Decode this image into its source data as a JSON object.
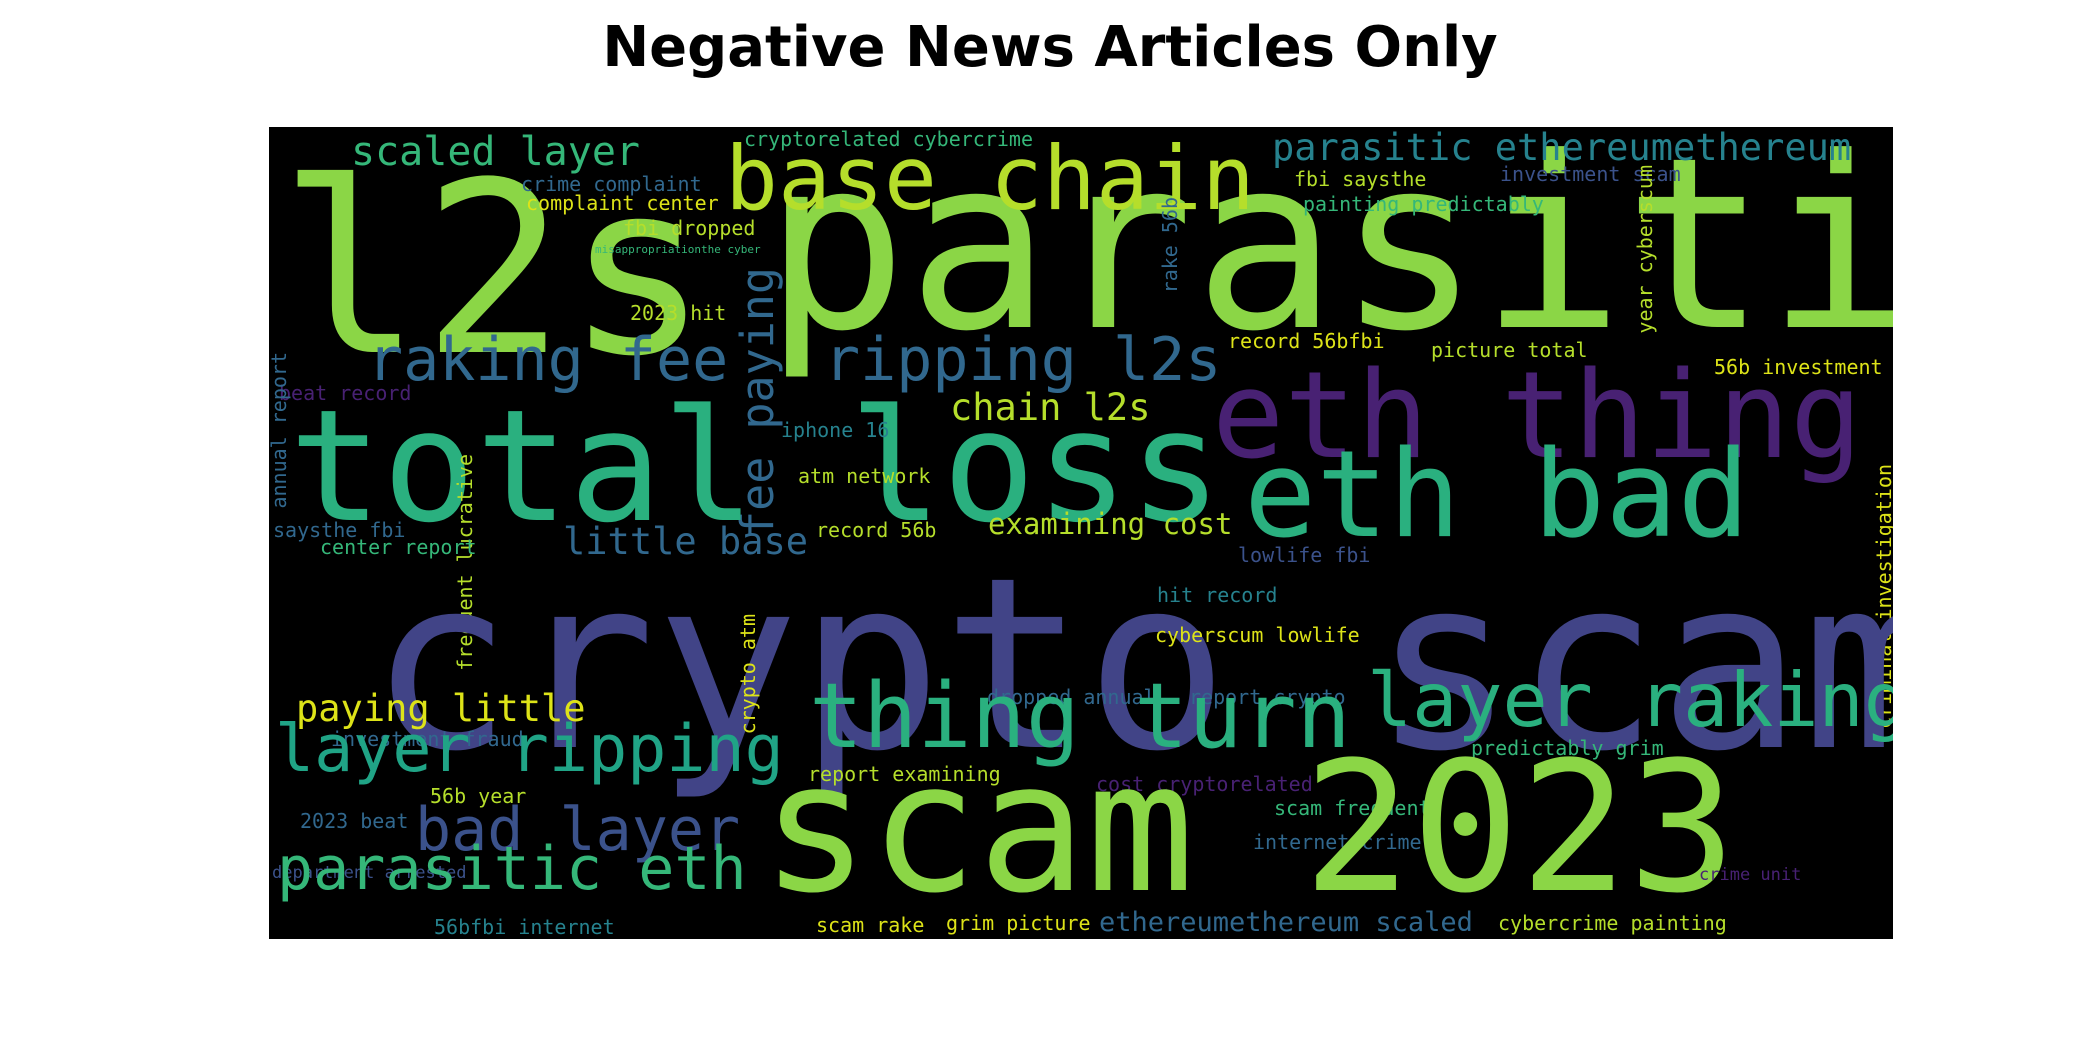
{
  "chart_data": {
    "type": "wordcloud",
    "title": "Negative News Articles Only",
    "background": "#000000",
    "colors": {
      "green": "#8bd646",
      "teal": "#2ab07f",
      "sea": "#20a486",
      "blue": "#3b528b",
      "indigo": "#414487",
      "purple": "#482173",
      "slate": "#31688e",
      "cyan": "#26828e",
      "lime": "#b5de2b",
      "yellow": "#dde318",
      "mid": "#35b779"
    },
    "words": [
      {
        "text": "l2s",
        "color": "green"
      },
      {
        "text": "parasitic",
        "color": "green"
      },
      {
        "text": "base chain",
        "color": "lime"
      },
      {
        "text": "scaled layer",
        "color": "mid"
      },
      {
        "text": "cryptorelated cybercrime",
        "color": "mid"
      },
      {
        "text": "parasitic ethereumethereum",
        "color": "cyan"
      },
      {
        "text": "crime complaint",
        "color": "slate"
      },
      {
        "text": "complaint center",
        "color": "yellow"
      },
      {
        "text": "fbi dropped",
        "color": "lime"
      },
      {
        "text": "misappropriationthe cyber",
        "color": "mid"
      },
      {
        "text": "fbi saysthe",
        "color": "lime"
      },
      {
        "text": "investment scam",
        "color": "blue"
      },
      {
        "text": "painting predictably",
        "color": "mid"
      },
      {
        "text": "rake 56b",
        "color": "slate"
      },
      {
        "text": "2023 hit",
        "color": "lime"
      },
      {
        "text": "year cyberscum",
        "color": "lime"
      },
      {
        "text": "raking fee",
        "color": "slate"
      },
      {
        "text": "fee paying",
        "color": "slate"
      },
      {
        "text": "ripping l2s",
        "color": "slate"
      },
      {
        "text": "record 56bfbi",
        "color": "yellow"
      },
      {
        "text": "picture total",
        "color": "lime"
      },
      {
        "text": "56b investment",
        "color": "yellow"
      },
      {
        "text": "eth thing",
        "color": "purple"
      },
      {
        "text": "beat record",
        "color": "purple"
      },
      {
        "text": "annual report",
        "color": "slate"
      },
      {
        "text": "total loss",
        "color": "teal"
      },
      {
        "text": "chain l2s",
        "color": "lime"
      },
      {
        "text": "iphone 16",
        "color": "cyan"
      },
      {
        "text": "eth bad",
        "color": "teal"
      },
      {
        "text": "atm network",
        "color": "lime"
      },
      {
        "text": "frequent lucrative",
        "color": "lime"
      },
      {
        "text": "criminal investigation",
        "color": "yellow"
      },
      {
        "text": "saysthe fbi",
        "color": "slate"
      },
      {
        "text": "center report",
        "color": "mid"
      },
      {
        "text": "little base",
        "color": "slate"
      },
      {
        "text": "record 56b",
        "color": "lime"
      },
      {
        "text": "examining cost",
        "color": "lime"
      },
      {
        "text": "lowlife fbi",
        "color": "blue"
      },
      {
        "text": "crypto scam",
        "color": "indigo"
      },
      {
        "text": "hit record",
        "color": "cyan"
      },
      {
        "text": "cyberscum lowlife",
        "color": "yellow"
      },
      {
        "text": "crypto atm",
        "color": "yellow"
      },
      {
        "text": "paying little",
        "color": "yellow"
      },
      {
        "text": "dropped annual",
        "color": "slate"
      },
      {
        "text": "report crypto",
        "color": "slate"
      },
      {
        "text": "thing turn",
        "color": "teal"
      },
      {
        "text": "layer raking",
        "color": "teal"
      },
      {
        "text": "investment fraud",
        "color": "slate"
      },
      {
        "text": "layer ripping",
        "color": "sea"
      },
      {
        "text": "predictably grim",
        "color": "mid"
      },
      {
        "text": "report examining",
        "color": "lime"
      },
      {
        "text": "cost cryptorelated",
        "color": "purple"
      },
      {
        "text": "56b year",
        "color": "lime"
      },
      {
        "text": "2023 beat",
        "color": "slate"
      },
      {
        "text": "bad layer",
        "color": "blue"
      },
      {
        "text": "scam frequent",
        "color": "mid"
      },
      {
        "text": "internet crime",
        "color": "slate"
      },
      {
        "text": "scam 2023",
        "color": "green"
      },
      {
        "text": "department arrested",
        "color": "blue"
      },
      {
        "text": "parasitic eth",
        "color": "mid"
      },
      {
        "text": "crime unit",
        "color": "purple"
      },
      {
        "text": "56bfbi internet",
        "color": "cyan"
      },
      {
        "text": "scam rake",
        "color": "yellow"
      },
      {
        "text": "grim picture",
        "color": "yellow"
      },
      {
        "text": "ethereumethereum scaled",
        "color": "slate"
      },
      {
        "text": "cybercrime painting",
        "color": "lime"
      }
    ]
  }
}
